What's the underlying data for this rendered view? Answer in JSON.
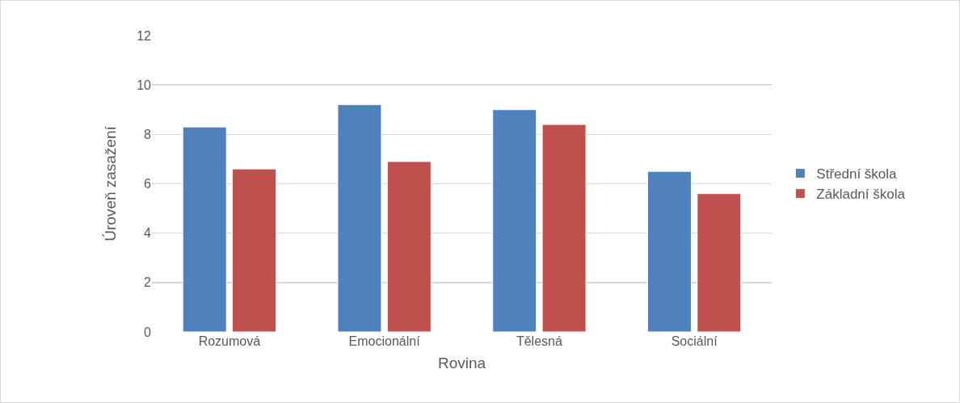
{
  "chart_data": {
    "type": "bar",
    "xlabel": "Rovina",
    "ylabel": "Úroveň zasažení",
    "categories": [
      "Rozumová",
      "Emocionální",
      "Tělesná",
      "Sociální"
    ],
    "series": [
      {
        "name": "Střední škola",
        "color": "#4f81bd",
        "values": [
          8.3,
          9.2,
          9.0,
          6.5
        ]
      },
      {
        "name": "Základní škola",
        "color": "#c0504d",
        "values": [
          6.6,
          6.9,
          8.4,
          5.6
        ]
      }
    ],
    "ylim": [
      0,
      12
    ],
    "yticks": [
      0,
      2,
      4,
      6,
      8,
      10,
      12
    ],
    "grid": "y",
    "legend": "right"
  }
}
